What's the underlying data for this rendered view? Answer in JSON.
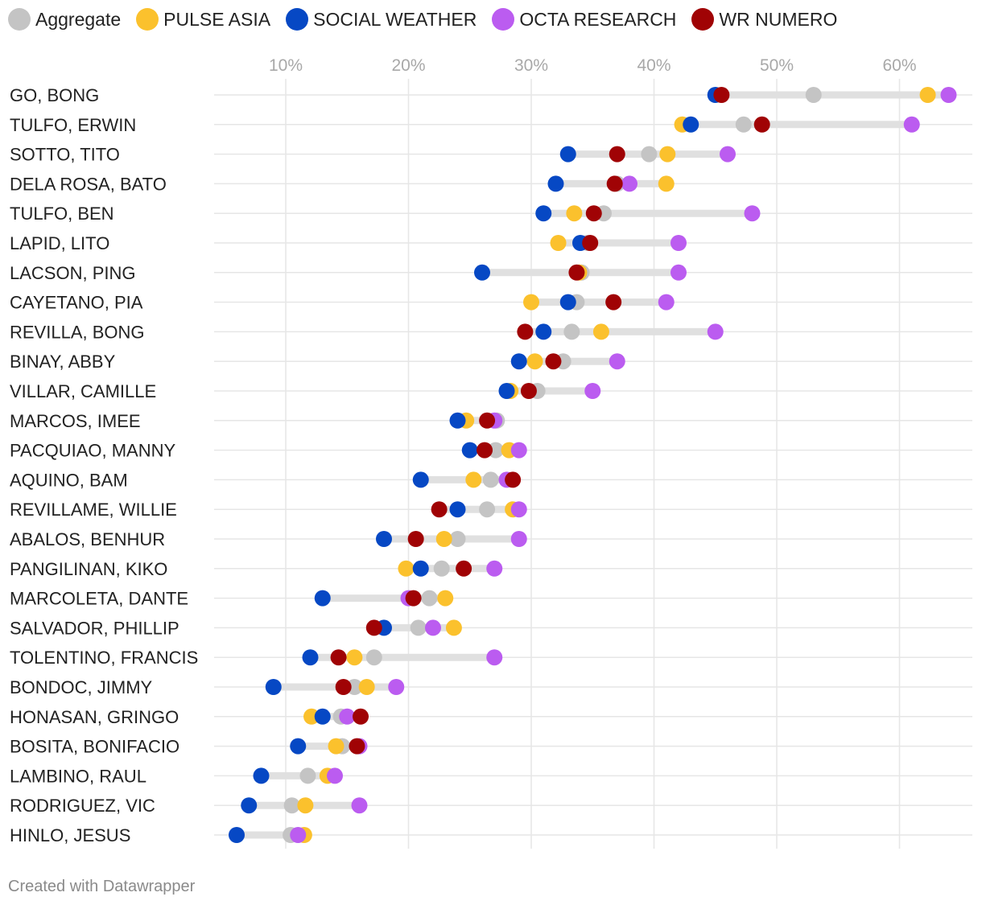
{
  "chart_data": {
    "type": "scatter",
    "subtype": "dot-range",
    "legend": [
      {
        "name": "Aggregate",
        "color": "#c4c4c4"
      },
      {
        "name": "PULSE ASIA",
        "color": "#fbc12d"
      },
      {
        "name": "SOCIAL WEATHER",
        "color": "#0648c4"
      },
      {
        "name": "OCTA RESEARCH",
        "color": "#bb5cf0"
      },
      {
        "name": "WR NUMERO",
        "color": "#a00305"
      }
    ],
    "legend_position": "top-left",
    "x_ticks": [
      "10%",
      "20%",
      "30%",
      "40%",
      "50%",
      "60%"
    ],
    "x_tick_values": [
      10,
      20,
      30,
      40,
      50,
      60
    ],
    "xlim": [
      4,
      66
    ],
    "grid": true,
    "range_bar_color": "#e0e0e0",
    "rows": [
      {
        "name": "GO, BONG",
        "values": {
          "Aggregate": 53,
          "PULSE ASIA": 62.3,
          "SOCIAL WEATHER": 45,
          "OCTA RESEARCH": 64,
          "WR NUMERO": 45.5
        }
      },
      {
        "name": "TULFO, ERWIN",
        "values": {
          "Aggregate": 47.3,
          "PULSE ASIA": 42.3,
          "SOCIAL WEATHER": 43,
          "OCTA RESEARCH": 61,
          "WR NUMERO": 48.8
        }
      },
      {
        "name": "SOTTO, TITO",
        "values": {
          "Aggregate": 39.6,
          "PULSE ASIA": 41.1,
          "SOCIAL WEATHER": 33,
          "OCTA RESEARCH": 46,
          "WR NUMERO": 37
        }
      },
      {
        "name": "DELA ROSA, BATO",
        "values": {
          "Aggregate": 37,
          "PULSE ASIA": 41,
          "SOCIAL WEATHER": 32,
          "OCTA RESEARCH": 38,
          "WR NUMERO": 36.8
        }
      },
      {
        "name": "TULFO, BEN",
        "values": {
          "Aggregate": 35.9,
          "PULSE ASIA": 33.5,
          "SOCIAL WEATHER": 31,
          "OCTA RESEARCH": 48,
          "WR NUMERO": 35.1
        }
      },
      {
        "name": "LAPID, LITO",
        "values": {
          "Aggregate": 34.6,
          "PULSE ASIA": 32.2,
          "SOCIAL WEATHER": 34,
          "OCTA RESEARCH": 42,
          "WR NUMERO": 34.8
        }
      },
      {
        "name": "LACSON, PING",
        "values": {
          "Aggregate": 34.1,
          "PULSE ASIA": 33.9,
          "SOCIAL WEATHER": 26,
          "OCTA RESEARCH": 42,
          "WR NUMERO": 33.7
        }
      },
      {
        "name": "CAYETANO, PIA",
        "values": {
          "Aggregate": 33.7,
          "PULSE ASIA": 30,
          "SOCIAL WEATHER": 33,
          "OCTA RESEARCH": 41,
          "WR NUMERO": 36.7
        }
      },
      {
        "name": "REVILLA, BONG",
        "values": {
          "Aggregate": 33.3,
          "PULSE ASIA": 35.7,
          "SOCIAL WEATHER": 31,
          "OCTA RESEARCH": 45,
          "WR NUMERO": 29.5
        }
      },
      {
        "name": "BINAY, ABBY",
        "values": {
          "Aggregate": 32.6,
          "PULSE ASIA": 30.3,
          "SOCIAL WEATHER": 29,
          "OCTA RESEARCH": 37,
          "WR NUMERO": 31.8
        }
      },
      {
        "name": "VILLAR, CAMILLE",
        "values": {
          "Aggregate": 30.5,
          "PULSE ASIA": 28.3,
          "SOCIAL WEATHER": 28,
          "OCTA RESEARCH": 35,
          "WR NUMERO": 29.8
        }
      },
      {
        "name": "MARCOS, IMEE",
        "values": {
          "Aggregate": 27.2,
          "PULSE ASIA": 24.7,
          "SOCIAL WEATHER": 24,
          "OCTA RESEARCH": 27,
          "WR NUMERO": 26.4
        }
      },
      {
        "name": "PACQUIAO, MANNY",
        "values": {
          "Aggregate": 27.1,
          "PULSE ASIA": 28.2,
          "SOCIAL WEATHER": 25,
          "OCTA RESEARCH": 29,
          "WR NUMERO": 26.2
        }
      },
      {
        "name": "AQUINO, BAM",
        "values": {
          "Aggregate": 26.7,
          "PULSE ASIA": 25.3,
          "SOCIAL WEATHER": 21,
          "OCTA RESEARCH": 28,
          "WR NUMERO": 28.5
        }
      },
      {
        "name": "REVILLAME, WILLIE",
        "values": {
          "Aggregate": 26.4,
          "PULSE ASIA": 28.5,
          "SOCIAL WEATHER": 24,
          "OCTA RESEARCH": 29,
          "WR NUMERO": 22.5
        }
      },
      {
        "name": "ABALOS, BENHUR",
        "values": {
          "Aggregate": 24,
          "PULSE ASIA": 22.9,
          "SOCIAL WEATHER": 18,
          "OCTA RESEARCH": 29,
          "WR NUMERO": 20.6
        }
      },
      {
        "name": "PANGILINAN, KIKO",
        "values": {
          "Aggregate": 22.7,
          "PULSE ASIA": 19.8,
          "SOCIAL WEATHER": 21,
          "OCTA RESEARCH": 27,
          "WR NUMERO": 24.5
        }
      },
      {
        "name": "MARCOLETA, DANTE",
        "values": {
          "Aggregate": 21.7,
          "PULSE ASIA": 23,
          "SOCIAL WEATHER": 13,
          "OCTA RESEARCH": 20,
          "WR NUMERO": 20.4
        }
      },
      {
        "name": "SALVADOR, PHILLIP",
        "values": {
          "Aggregate": 20.8,
          "PULSE ASIA": 23.7,
          "SOCIAL WEATHER": 18,
          "OCTA RESEARCH": 22,
          "WR NUMERO": 17.2
        }
      },
      {
        "name": "TOLENTINO, FRANCIS",
        "values": {
          "Aggregate": 17.2,
          "PULSE ASIA": 15.6,
          "SOCIAL WEATHER": 12,
          "OCTA RESEARCH": 27,
          "WR NUMERO": 14.3
        }
      },
      {
        "name": "BONDOC, JIMMY",
        "values": {
          "Aggregate": 15.6,
          "PULSE ASIA": 16.6,
          "SOCIAL WEATHER": 9,
          "OCTA RESEARCH": 19,
          "WR NUMERO": 14.7
        }
      },
      {
        "name": "HONASAN, GRINGO",
        "values": {
          "Aggregate": 14.5,
          "PULSE ASIA": 12.1,
          "SOCIAL WEATHER": 13,
          "OCTA RESEARCH": 15,
          "WR NUMERO": 16.1
        }
      },
      {
        "name": "BOSITA, BONIFACIO",
        "values": {
          "Aggregate": 14.6,
          "PULSE ASIA": 14.1,
          "SOCIAL WEATHER": 11,
          "OCTA RESEARCH": 16,
          "WR NUMERO": 15.8
        }
      },
      {
        "name": "LAMBINO, RAUL",
        "values": {
          "Aggregate": 11.8,
          "PULSE ASIA": 13.4,
          "SOCIAL WEATHER": 8,
          "OCTA RESEARCH": 14,
          "WR NUMERO": null
        }
      },
      {
        "name": "RODRIGUEZ, VIC",
        "values": {
          "Aggregate": 10.5,
          "PULSE ASIA": 11.6,
          "SOCIAL WEATHER": 7,
          "OCTA RESEARCH": 16,
          "WR NUMERO": null
        }
      },
      {
        "name": "HINLO, JESUS",
        "values": {
          "Aggregate": 10.4,
          "PULSE ASIA": 11.5,
          "SOCIAL WEATHER": 6,
          "OCTA RESEARCH": 11,
          "WR NUMERO": null
        }
      }
    ]
  },
  "footer": {
    "credit": "Created with Datawrapper"
  }
}
